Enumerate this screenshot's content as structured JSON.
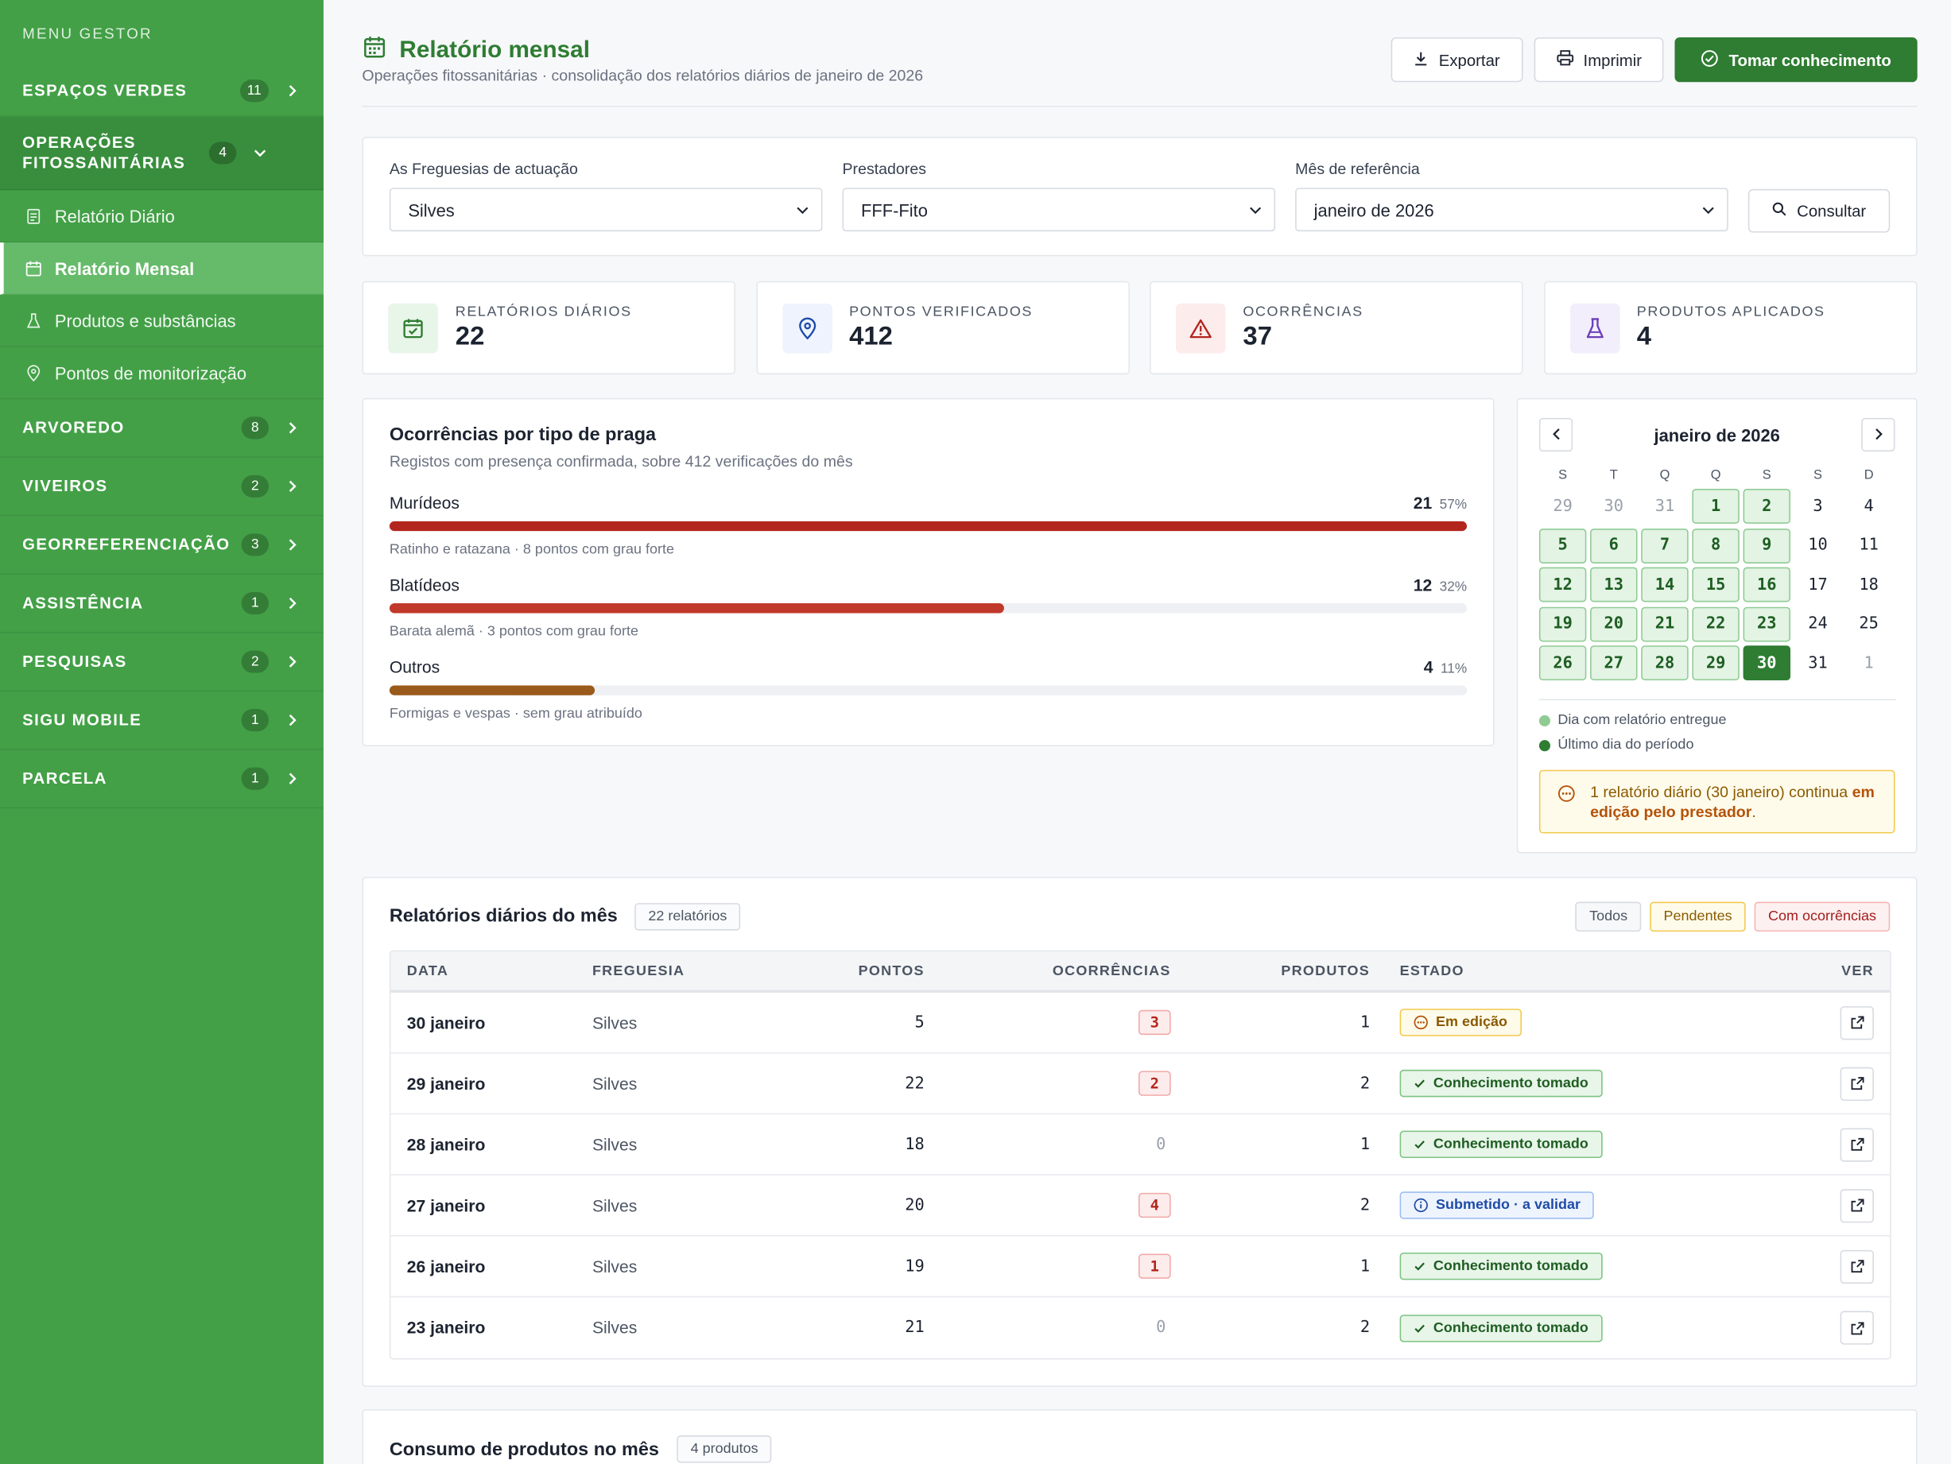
{
  "sidebar": {
    "menu_title": "MENU GESTOR",
    "groups": [
      {
        "label": "ESPAÇOS VERDES",
        "count": "11"
      },
      {
        "label": "OPERAÇÕES FITOSSANITÁRIAS",
        "count": "4"
      },
      {
        "label": "ARVOREDO",
        "count": "8"
      },
      {
        "label": "VIVEIROS",
        "count": "2"
      },
      {
        "label": "GEORREFERENCIAÇÃO",
        "count": "3"
      },
      {
        "label": "ASSISTÊNCIA",
        "count": "1"
      },
      {
        "label": "PESQUISAS",
        "count": "2"
      },
      {
        "label": "SIGU MOBILE",
        "count": "1"
      },
      {
        "label": "PARCELA",
        "count": "1"
      }
    ],
    "subitems": [
      {
        "label": "Relatório Diário",
        "icon": "report-icon"
      },
      {
        "label": "Relatório Mensal",
        "icon": "calendar-icon"
      },
      {
        "label": "Produtos e substâncias",
        "icon": "flask-icon"
      },
      {
        "label": "Pontos de monitorização",
        "icon": "pin-icon"
      }
    ]
  },
  "header": {
    "title": "Relatório mensal",
    "subtitle": "Operações fitossanitárias · consolidação dos relatórios diários de janeiro de 2026",
    "export_label": "Exportar",
    "print_label": "Imprimir",
    "ack_label": "Tomar conhecimento"
  },
  "filters": {
    "freguesia_label": "As Freguesias de actuação",
    "freguesia_value": "Silves",
    "prestador_label": "Prestadores",
    "prestador_value": "FFF-Fito",
    "mes_label": "Mês de referência",
    "mes_value": "janeiro de 2026",
    "consultar_label": "Consultar"
  },
  "kpis": [
    {
      "label": "RELATÓRIOS DIÁRIOS",
      "value": "22",
      "icon": "calendar-check-icon",
      "color": "#2e7d32",
      "bg": "#e8f5e9"
    },
    {
      "label": "PONTOS VERIFICADOS",
      "value": "412",
      "icon": "pin-icon",
      "color": "#1e4ba8",
      "bg": "#eef3fd"
    },
    {
      "label": "OCORRÊNCIAS",
      "value": "37",
      "icon": "warning-icon",
      "color": "#b3261e",
      "bg": "#fdecec"
    },
    {
      "label": "PRODUTOS APLICADOS",
      "value": "4",
      "icon": "flask-icon",
      "color": "#6a3fb8",
      "bg": "#f3eefc"
    }
  ],
  "pests": {
    "title": "Ocorrências por tipo de praga",
    "subtitle": "Registos com presença confirmada, sobre 412 verificações do mês",
    "items": [
      {
        "name": "Murídeos",
        "count": "21",
        "pct": "57%",
        "fraction": 1.0,
        "note": "Ratinho e ratazana · 8 pontos com grau forte",
        "color": "#b3261e"
      },
      {
        "name": "Blatídeos",
        "count": "12",
        "pct": "32%",
        "fraction": 0.57,
        "note": "Barata alemã · 3 pontos com grau forte",
        "color": "#c0392b"
      },
      {
        "name": "Outros",
        "count": "4",
        "pct": "11%",
        "fraction": 0.19,
        "note": "Formigas e vespas · sem grau atribuído",
        "color": "#9a5a1c"
      }
    ]
  },
  "calendar": {
    "title": "janeiro de 2026",
    "weekdays": [
      "S",
      "T",
      "Q",
      "Q",
      "S",
      "S",
      "D"
    ],
    "days": [
      {
        "d": "29",
        "t": "other"
      },
      {
        "d": "30",
        "t": "other"
      },
      {
        "d": "31",
        "t": "other"
      },
      {
        "d": "1",
        "t": "rep"
      },
      {
        "d": "2",
        "t": "rep"
      },
      {
        "d": "3",
        "t": "norm"
      },
      {
        "d": "4",
        "t": "norm"
      },
      {
        "d": "5",
        "t": "rep"
      },
      {
        "d": "6",
        "t": "rep"
      },
      {
        "d": "7",
        "t": "rep"
      },
      {
        "d": "8",
        "t": "rep"
      },
      {
        "d": "9",
        "t": "rep"
      },
      {
        "d": "10",
        "t": "norm"
      },
      {
        "d": "11",
        "t": "norm"
      },
      {
        "d": "12",
        "t": "rep"
      },
      {
        "d": "13",
        "t": "rep"
      },
      {
        "d": "14",
        "t": "rep"
      },
      {
        "d": "15",
        "t": "rep"
      },
      {
        "d": "16",
        "t": "rep"
      },
      {
        "d": "17",
        "t": "norm"
      },
      {
        "d": "18",
        "t": "norm"
      },
      {
        "d": "19",
        "t": "rep"
      },
      {
        "d": "20",
        "t": "rep"
      },
      {
        "d": "21",
        "t": "rep"
      },
      {
        "d": "22",
        "t": "rep"
      },
      {
        "d": "23",
        "t": "rep"
      },
      {
        "d": "24",
        "t": "norm"
      },
      {
        "d": "25",
        "t": "norm"
      },
      {
        "d": "26",
        "t": "rep"
      },
      {
        "d": "27",
        "t": "rep"
      },
      {
        "d": "28",
        "t": "rep"
      },
      {
        "d": "29",
        "t": "rep"
      },
      {
        "d": "30",
        "t": "last"
      },
      {
        "d": "31",
        "t": "norm"
      },
      {
        "d": "1",
        "t": "other"
      }
    ],
    "legend_delivered": "Dia com relatório entregue",
    "legend_last": "Último dia do período",
    "alert_text": "1 relatório diário (30 janeiro) continua",
    "alert_bold": "em edição pelo prestador",
    "alert_end": "."
  },
  "reports": {
    "title": "Relatórios diários do mês",
    "count_label": "22 relatórios",
    "filters": [
      "Todos",
      "Pendentes",
      "Com ocorrências"
    ],
    "columns": [
      "DATA",
      "FREGUESIA",
      "PONTOS",
      "OCORRÊNCIAS",
      "PRODUTOS",
      "ESTADO",
      "VER"
    ],
    "rows": [
      {
        "date": "30 janeiro",
        "freguesia": "Silves",
        "pontos": "5",
        "ocorrencias": "3",
        "produtos": "1",
        "estado": "Em edição",
        "estado_type": "edit"
      },
      {
        "date": "29 janeiro",
        "freguesia": "Silves",
        "pontos": "22",
        "ocorrencias": "2",
        "produtos": "2",
        "estado": "Conhecimento tomado",
        "estado_type": "ok"
      },
      {
        "date": "28 janeiro",
        "freguesia": "Silves",
        "pontos": "18",
        "ocorrencias": "0",
        "produtos": "1",
        "estado": "Conhecimento tomado",
        "estado_type": "ok"
      },
      {
        "date": "27 janeiro",
        "freguesia": "Silves",
        "pontos": "20",
        "ocorrencias": "4",
        "produtos": "2",
        "estado": "Submetido · a validar",
        "estado_type": "sub"
      },
      {
        "date": "26 janeiro",
        "freguesia": "Silves",
        "pontos": "19",
        "ocorrencias": "1",
        "produtos": "1",
        "estado": "Conhecimento tomado",
        "estado_type": "ok"
      },
      {
        "date": "23 janeiro",
        "freguesia": "Silves",
        "pontos": "21",
        "ocorrencias": "0",
        "produtos": "2",
        "estado": "Conhecimento tomado",
        "estado_type": "ok"
      }
    ]
  },
  "consumo": {
    "title": "Consumo de produtos no mês",
    "count_label": "4 produtos"
  },
  "colors": {
    "sidebar": "#43a047",
    "accent": "#2e7d32"
  }
}
